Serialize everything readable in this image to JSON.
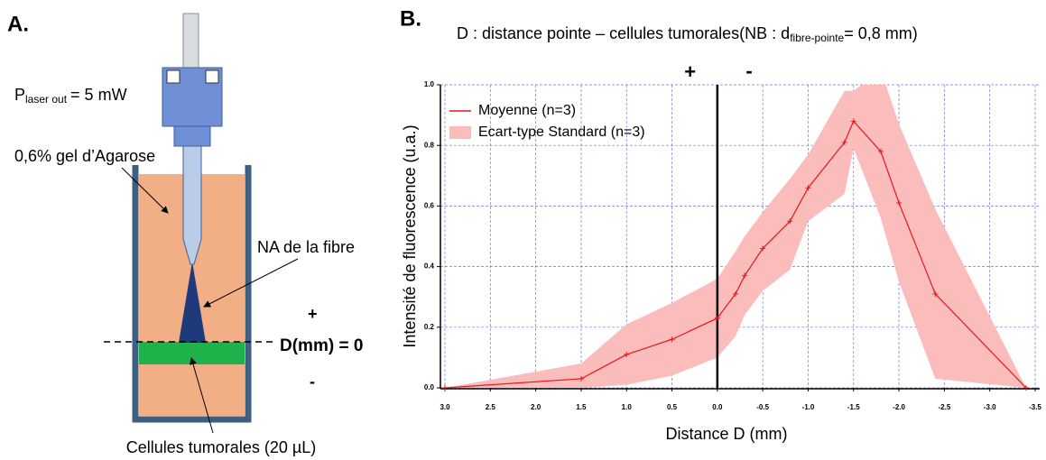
{
  "panel_a": {
    "label": "A.",
    "power_main": "P",
    "power_sub": "laser out",
    "power_end": "= 5 mW",
    "gel": "0,6% gel d’Agarose",
    "na": "NA de la fibre",
    "plus": "+",
    "zero": "D(mm) = 0",
    "minus": "-",
    "cells": "Cellules tumorales (20 µL)"
  },
  "chart_data": {
    "type": "line",
    "panel_label": "B.",
    "title": {
      "main": "D : distance pointe – cellules tumorales(NB : d",
      "sub": "fibre-pointe",
      "end": "= 0,8 mm)"
    },
    "x_label": "Distance D (mm)",
    "y_label": "Intensité de fluorescence (u.a.)",
    "annotations": {
      "plus": "+",
      "minus": "-"
    },
    "x": [
      3.0,
      1.5,
      1.0,
      0.5,
      0.0,
      -0.2,
      -0.3,
      -0.5,
      -0.8,
      -1.0,
      -1.4,
      -1.5,
      -1.8,
      -2.0,
      -2.4,
      -3.4
    ],
    "series": [
      {
        "name": "Moyenne (n=3)",
        "color": "#e8151b",
        "values": [
          0,
          0.03,
          0.11,
          0.16,
          0.23,
          0.31,
          0.37,
          0.46,
          0.55,
          0.66,
          0.81,
          0.88,
          0.78,
          0.61,
          0.31,
          0
        ]
      }
    ],
    "band": {
      "name": "Ecart-type Standard (n=3)",
      "color": "#fbbcbc",
      "upper": [
        0,
        0.08,
        0.21,
        0.28,
        0.36,
        0.45,
        0.5,
        0.58,
        0.69,
        0.77,
        0.98,
        0.98,
        1.05,
        0.87,
        0.59,
        0
      ],
      "lower": [
        0,
        0,
        0.01,
        0.04,
        0.1,
        0.17,
        0.24,
        0.32,
        0.39,
        0.55,
        0.64,
        0.79,
        0.56,
        0.35,
        0.03,
        0
      ]
    },
    "xlim": [
      3.0,
      -3.5
    ],
    "ylim": [
      0,
      1.0
    ],
    "xticks": [
      {
        "value": 3,
        "label": "3.0"
      },
      2.5,
      {
        "value": 2,
        "label": "2.0"
      },
      1.5,
      {
        "value": 1,
        "label": "1.0"
      },
      0.5,
      {
        "value": 0,
        "label": "0.0"
      },
      -0.5,
      {
        "value": -1,
        "label": "-1.0"
      },
      -1.5,
      {
        "value": -2,
        "label": "-2.0"
      },
      -2.5,
      {
        "value": -3,
        "label": "-3.0"
      },
      -3.5
    ],
    "yticks": [
      {
        "value": 0,
        "label": "0.0"
      },
      0.2,
      0.4,
      0.6,
      0.8,
      {
        "value": 1,
        "label": "1.0"
      }
    ],
    "grid": true,
    "legend": "top-left",
    "zero_line_color": "#000000"
  }
}
